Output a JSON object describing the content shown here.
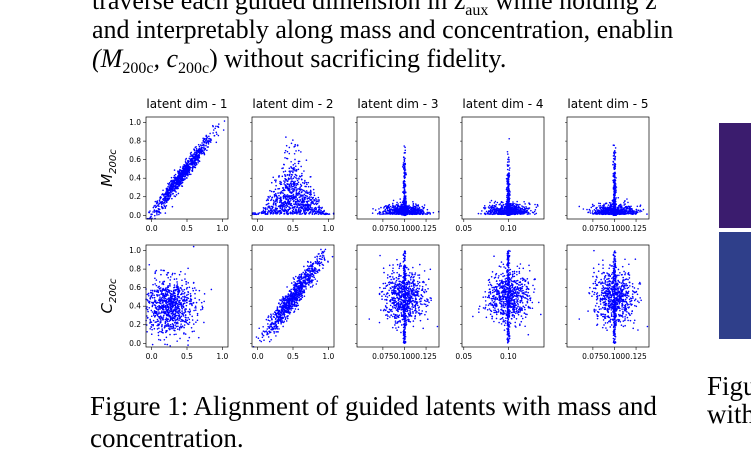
{
  "body_text": {
    "line1": "traverse each guided dimension in z",
    "line1_sub": "aux",
    "line1_tail": " while holding z",
    "line2": "and interpretably along mass and concentration, enablin",
    "line3_math": "(M",
    "line3_sub1": "200c",
    "line3_mid": ", c",
    "line3_sub2": "200c",
    "line3_close": ")",
    "line3_rest": " without sacrificing fidelity."
  },
  "figure1": {
    "caption": "Figure 1: Alignment of guided latents with mass and concentration."
  },
  "figure2": {
    "caption_line1": "Figu",
    "caption_line2": "with"
  },
  "chart_data": {
    "type": "scatter",
    "point_color": "#0000ff",
    "columns": [
      "latent dim - 1",
      "latent dim - 2",
      "latent dim - 3",
      "latent dim - 4",
      "latent dim - 5"
    ],
    "rows": [
      {
        "ylabel_main": "M",
        "ylabel_sub": "200c",
        "yticks": [
          "0.0",
          "0.2",
          "0.4",
          "0.6",
          "0.8",
          "1.0"
        ],
        "ylim": [
          0,
          1
        ]
      },
      {
        "ylabel_main": "C",
        "ylabel_sub": "200c",
        "yticks": [
          "0.0",
          "0.2",
          "0.4",
          "0.6",
          "0.8",
          "1.0"
        ],
        "ylim": [
          0,
          1
        ]
      }
    ],
    "xticks": [
      {
        "labels": [
          "0.0",
          "0.5",
          "1.0"
        ],
        "values": [
          0,
          0.5,
          1.0
        ],
        "xlim": [
          -0.08,
          1.08
        ]
      },
      {
        "labels": [
          "0.0",
          "0.5",
          "1.0"
        ],
        "values": [
          0,
          0.5,
          1.0
        ],
        "xlim": [
          -0.08,
          1.08
        ]
      },
      {
        "labels": [
          "0.075",
          "0.100",
          "0.125"
        ],
        "values": [
          0.075,
          0.1,
          0.125
        ],
        "xlim": [
          0.045,
          0.14
        ]
      },
      {
        "labels": [
          "0.05",
          "0.10"
        ],
        "values": [
          0.05,
          0.1
        ],
        "xlim": [
          0.048,
          0.14
        ]
      },
      {
        "labels": [
          "0.075",
          "0.100",
          "0.125"
        ],
        "values": [
          0.075,
          0.1,
          0.125
        ],
        "xlim": [
          0.045,
          0.14
        ]
      }
    ],
    "panels": [
      [
        {
          "pattern": "linear",
          "description_free": true,
          "center_x": 0.42,
          "spread": 0.22,
          "slope": 1.0,
          "noise": 0.05
        },
        {
          "pattern": "triangle",
          "center_x": 0.5,
          "spread": 0.22
        },
        {
          "pattern": "spike",
          "center_x": 0.1,
          "spread": 0.012
        },
        {
          "pattern": "spike",
          "center_x": 0.1,
          "spread": 0.012
        },
        {
          "pattern": "spike",
          "center_x": 0.1,
          "spread": 0.012
        }
      ],
      [
        {
          "pattern": "cloud",
          "center_x": 0.25,
          "spread": 0.18,
          "center_y": 0.4,
          "spread_y": 0.15
        },
        {
          "pattern": "linear",
          "center_x": 0.5,
          "spread": 0.2,
          "slope": 1.0,
          "noise": 0.07
        },
        {
          "pattern": "round_cloud",
          "center_x": 0.1,
          "spread": 0.012,
          "center_y": 0.5,
          "spread_y": 0.14
        },
        {
          "pattern": "round_cloud",
          "center_x": 0.1,
          "spread": 0.012,
          "center_y": 0.5,
          "spread_y": 0.14
        },
        {
          "pattern": "round_cloud",
          "center_x": 0.1,
          "spread": 0.012,
          "center_y": 0.5,
          "spread_y": 0.14
        }
      ]
    ]
  }
}
